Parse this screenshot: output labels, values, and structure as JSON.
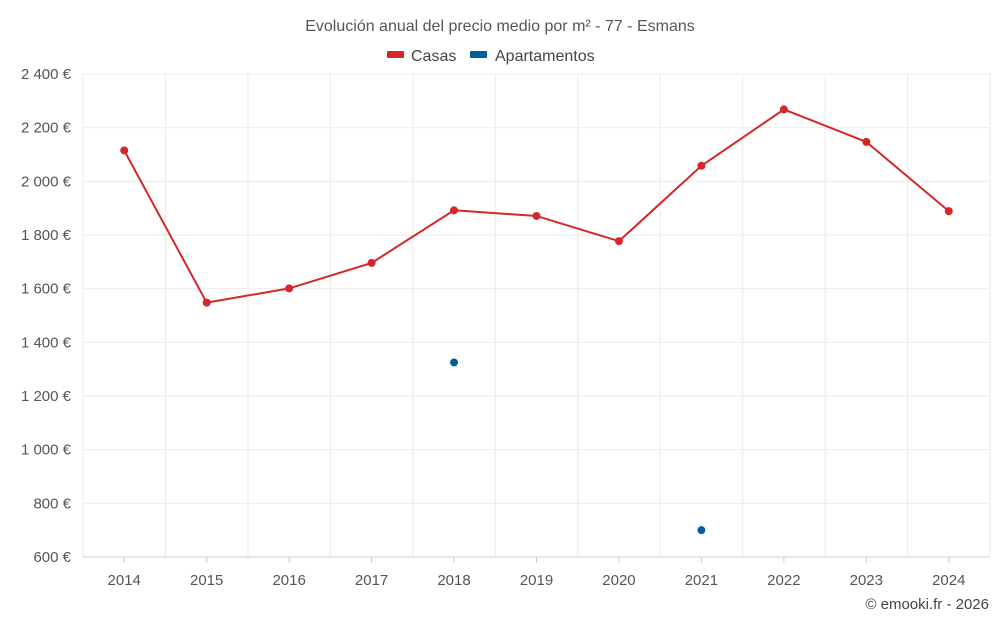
{
  "chart_data": {
    "type": "line",
    "title": "Evolución anual del precio medio por m² - 77 - Esmans",
    "xlabel": "",
    "ylabel": "",
    "categories": [
      "2014",
      "2015",
      "2016",
      "2017",
      "2018",
      "2019",
      "2020",
      "2021",
      "2022",
      "2023",
      "2024"
    ],
    "ylim": [
      600,
      2400
    ],
    "yticks": [
      600,
      800,
      1000,
      1200,
      1400,
      1600,
      1800,
      2000,
      2200,
      2400
    ],
    "ytick_labels": [
      "600 €",
      "800 €",
      "1 000 €",
      "1 200 €",
      "1 400 €",
      "1 600 €",
      "1 800 €",
      "2 000 €",
      "2 200 €",
      "2 400 €"
    ],
    "grid": true,
    "legend_position": "top-center",
    "series": [
      {
        "name": "Casas",
        "color": "#d62728",
        "values": [
          2115,
          1548,
          1601,
          1696,
          1892,
          1871,
          1777,
          2058,
          2268,
          2147,
          1889
        ]
      },
      {
        "name": "Apartamentos",
        "color": "#005f99",
        "values": [
          null,
          null,
          null,
          null,
          1325,
          null,
          null,
          700,
          null,
          null,
          null
        ]
      }
    ]
  },
  "credit": "© emooki.fr - 2026"
}
